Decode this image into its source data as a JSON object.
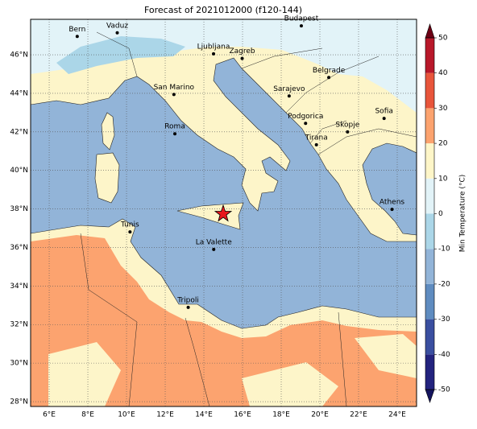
{
  "chart_data": {
    "type": "map",
    "title": "Forecast of 2021012000 (f120-144)",
    "xlim": [
      5.04,
      25
    ],
    "ylim": [
      27.75,
      47.84
    ],
    "xticks": [
      {
        "value": 6,
        "label": "6°E"
      },
      {
        "value": 8,
        "label": "8°E"
      },
      {
        "value": 10,
        "label": "10°E"
      },
      {
        "value": 12,
        "label": "12°E"
      },
      {
        "value": 14,
        "label": "14°E"
      },
      {
        "value": 16,
        "label": "16°E"
      },
      {
        "value": 18,
        "label": "18°E"
      },
      {
        "value": 20,
        "label": "20°E"
      },
      {
        "value": 22,
        "label": "22°E"
      },
      {
        "value": 24,
        "label": "24°E"
      }
    ],
    "yticks": [
      {
        "value": 28,
        "label": "28°N"
      },
      {
        "value": 30,
        "label": "30°N"
      },
      {
        "value": 32,
        "label": "32°N"
      },
      {
        "value": 34,
        "label": "34°N"
      },
      {
        "value": 36,
        "label": "36°N"
      },
      {
        "value": 38,
        "label": "38°N"
      },
      {
        "value": 40,
        "label": "40°N"
      },
      {
        "value": 42,
        "label": "42°N"
      },
      {
        "value": 44,
        "label": "44°N"
      },
      {
        "value": 46,
        "label": "46°N"
      }
    ],
    "grid": true,
    "cities": [
      {
        "name": "Bern",
        "lon": 7.45,
        "lat": 46.95
      },
      {
        "name": "Vaduz",
        "lon": 9.52,
        "lat": 47.14
      },
      {
        "name": "Budapest",
        "lon": 19.04,
        "lat": 47.5
      },
      {
        "name": "Ljubljana",
        "lon": 14.5,
        "lat": 46.05
      },
      {
        "name": "Zagreb",
        "lon": 15.98,
        "lat": 45.81
      },
      {
        "name": "San Marino",
        "lon": 12.45,
        "lat": 43.94
      },
      {
        "name": "Belgrade",
        "lon": 20.46,
        "lat": 44.82
      },
      {
        "name": "Sarajevo",
        "lon": 18.41,
        "lat": 43.86
      },
      {
        "name": "Roma",
        "lon": 12.5,
        "lat": 41.9
      },
      {
        "name": "Podgorica",
        "lon": 19.26,
        "lat": 42.44
      },
      {
        "name": "Skopje",
        "lon": 21.43,
        "lat": 42.0
      },
      {
        "name": "Sofia",
        "lon": 23.32,
        "lat": 42.7
      },
      {
        "name": "Tirana",
        "lon": 19.82,
        "lat": 41.33
      },
      {
        "name": "Athens",
        "lon": 23.73,
        "lat": 37.98
      },
      {
        "name": "Tunis",
        "lon": 10.18,
        "lat": 36.81
      },
      {
        "name": "La Valette",
        "lon": 14.51,
        "lat": 35.9
      },
      {
        "name": "Tripoli",
        "lon": 13.19,
        "lat": 32.89
      }
    ],
    "colorbar": {
      "label": "Min Temperature (°C)",
      "lim": [
        -50,
        50
      ],
      "ticks": [
        -50,
        -40,
        -30,
        -20,
        -10,
        0,
        10,
        20,
        30,
        40,
        50
      ],
      "levels": [
        -50,
        -40,
        -30,
        -20,
        -10,
        0,
        10,
        20,
        30,
        40,
        50
      ],
      "colors": [
        "#23237e",
        "#3a4fa0",
        "#5f8cc0",
        "#92b4d8",
        "#abd6e8",
        "#e2f3f8",
        "#fef6c8",
        "#fca36f",
        "#e8553b",
        "#b8182a"
      ],
      "extend_colors": [
        "#14145e",
        "#6d0014"
      ]
    }
  }
}
